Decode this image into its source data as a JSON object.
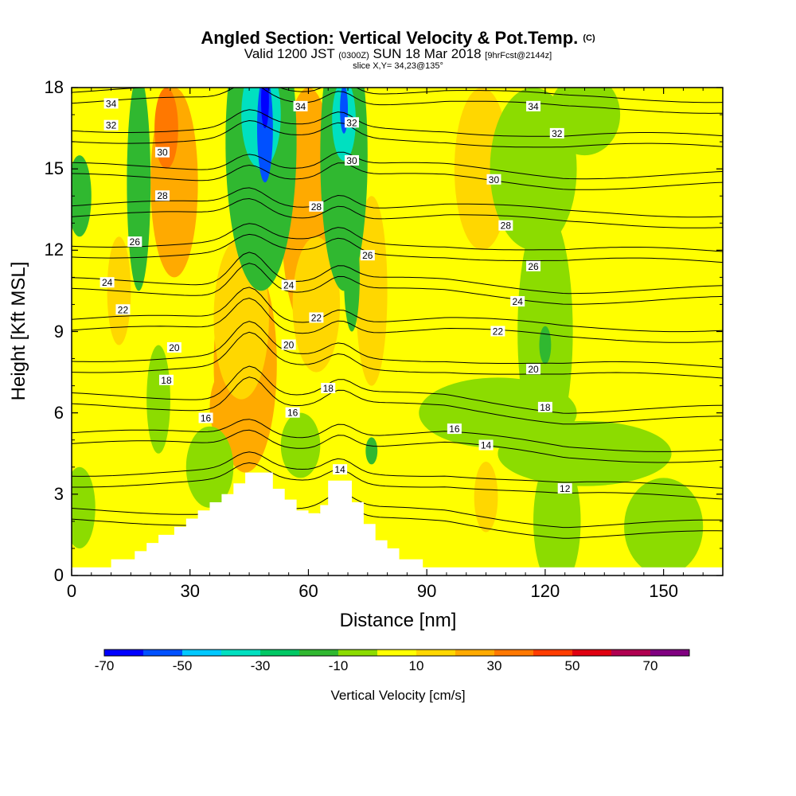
{
  "chart_data": {
    "type": "heatmap",
    "title": "Angled Section: Vertical Velocity & Pot.Temp.",
    "title_unit": "(C)",
    "subtitle": {
      "valid": "Valid 1200 JST",
      "utc": "(0300Z)",
      "date": "SUN 18 Mar 2018",
      "forecast": "[9hrFcst@2144z]"
    },
    "slice": "slice X,Y= 34,23@135°",
    "xlabel": "Distance [nm]",
    "ylabel": "Height [Kft MSL]",
    "xlim": [
      0,
      165
    ],
    "ylim": [
      0,
      18
    ],
    "x_ticks": [
      "0",
      "30",
      "60",
      "90",
      "120",
      "150"
    ],
    "y_ticks": [
      "0",
      "3",
      "6",
      "9",
      "12",
      "15",
      "18"
    ],
    "colorbar": {
      "title": "Vertical Velocity [cm/s]",
      "tick_labels": [
        "-70",
        "-50",
        "-30",
        "-10",
        "10",
        "30",
        "50",
        "70"
      ],
      "levels": [
        -70,
        -60,
        -50,
        -40,
        -30,
        -20,
        -10,
        0,
        10,
        20,
        30,
        40,
        50,
        60,
        70,
        80
      ],
      "colors": [
        "#0000ff",
        "#0050ff",
        "#00c8ff",
        "#00e0c0",
        "#00c864",
        "#30b830",
        "#8cdc00",
        "#ffff00",
        "#ffd700",
        "#ffaa00",
        "#ff7800",
        "#ff3c00",
        "#e00010",
        "#b00050",
        "#800080"
      ]
    },
    "terrain_profile": [
      [
        0,
        0.3
      ],
      [
        10,
        0.3
      ],
      [
        10,
        0.6
      ],
      [
        16,
        0.6
      ],
      [
        16,
        0.9
      ],
      [
        19,
        0.9
      ],
      [
        19,
        1.2
      ],
      [
        22,
        1.2
      ],
      [
        22,
        1.5
      ],
      [
        26,
        1.5
      ],
      [
        26,
        1.8
      ],
      [
        29,
        1.8
      ],
      [
        29,
        2.1
      ],
      [
        32,
        2.1
      ],
      [
        32,
        2.4
      ],
      [
        35,
        2.4
      ],
      [
        35,
        2.7
      ],
      [
        38,
        2.7
      ],
      [
        38,
        3.0
      ],
      [
        41,
        3.0
      ],
      [
        41,
        3.4
      ],
      [
        44,
        3.4
      ],
      [
        44,
        3.8
      ],
      [
        51,
        3.8
      ],
      [
        51,
        3.2
      ],
      [
        54,
        3.2
      ],
      [
        54,
        2.8
      ],
      [
        57,
        2.8
      ],
      [
        57,
        2.4
      ],
      [
        60,
        2.4
      ],
      [
        60,
        2.3
      ],
      [
        63,
        2.3
      ],
      [
        63,
        2.6
      ],
      [
        65,
        2.6
      ],
      [
        65,
        3.5
      ],
      [
        71,
        3.5
      ],
      [
        71,
        2.7
      ],
      [
        74,
        2.7
      ],
      [
        74,
        1.9
      ],
      [
        77,
        1.9
      ],
      [
        77,
        1.3
      ],
      [
        80,
        1.3
      ],
      [
        80,
        1.0
      ],
      [
        83,
        1.0
      ],
      [
        83,
        0.6
      ],
      [
        89,
        0.6
      ],
      [
        89,
        0.3
      ],
      [
        165,
        0.3
      ]
    ],
    "velocity_features": [
      {
        "x": 45,
        "y": 7.2,
        "rx": 3,
        "ry": 1.2,
        "value": 45
      },
      {
        "x": 45,
        "y": 7.5,
        "rx": 5,
        "ry": 2.4,
        "value": 35
      },
      {
        "x": 44,
        "y": 7.8,
        "rx": 8,
        "ry": 4.0,
        "value": 25
      },
      {
        "x": 40,
        "y": 6.2,
        "rx": 5,
        "ry": 1.5,
        "value": 25
      },
      {
        "x": 43,
        "y": 9.5,
        "rx": 7,
        "ry": 3.0,
        "value": 15
      },
      {
        "x": 26,
        "y": 14.5,
        "rx": 6,
        "ry": 3.5,
        "value": 25
      },
      {
        "x": 24,
        "y": 16.5,
        "rx": 3,
        "ry": 1.5,
        "value": 35
      },
      {
        "x": 60,
        "y": 13.5,
        "rx": 7,
        "ry": 4.5,
        "value": 25
      },
      {
        "x": 62,
        "y": 10.0,
        "rx": 6,
        "ry": 2.5,
        "value": 15
      },
      {
        "x": 104,
        "y": 15.0,
        "rx": 7,
        "ry": 3.0,
        "value": 15
      },
      {
        "x": 76,
        "y": 10.5,
        "rx": 4,
        "ry": 3.5,
        "value": 15
      },
      {
        "x": 105,
        "y": 2.9,
        "rx": 3,
        "ry": 1.3,
        "value": 15
      },
      {
        "x": 12,
        "y": 10.5,
        "rx": 3,
        "ry": 2.0,
        "value": 15
      },
      {
        "x": 48,
        "y": 16.0,
        "rx": 9,
        "ry": 5.5,
        "value": -15
      },
      {
        "x": 48,
        "y": 17.0,
        "rx": 5,
        "ry": 2.0,
        "value": -35
      },
      {
        "x": 49,
        "y": 16.5,
        "rx": 2,
        "ry": 2.0,
        "value": -55
      },
      {
        "x": 49,
        "y": 17.5,
        "rx": 1,
        "ry": 1.0,
        "value": -70
      },
      {
        "x": 69,
        "y": 15.5,
        "rx": 6,
        "ry": 5.0,
        "value": -15
      },
      {
        "x": 69,
        "y": 16.8,
        "rx": 3,
        "ry": 1.5,
        "value": -35
      },
      {
        "x": 69,
        "y": 17.2,
        "rx": 1,
        "ry": 0.9,
        "value": -55
      },
      {
        "x": 71,
        "y": 11.0,
        "rx": 2,
        "ry": 2.0,
        "value": -15
      },
      {
        "x": 17,
        "y": 14.5,
        "rx": 3,
        "ry": 4.0,
        "value": -15
      },
      {
        "x": 2,
        "y": 14.0,
        "rx": 3,
        "ry": 1.5,
        "value": -15
      },
      {
        "x": 117,
        "y": 15.0,
        "rx": 11,
        "ry": 3.0,
        "value": -5
      },
      {
        "x": 120,
        "y": 9.0,
        "rx": 7,
        "ry": 4.5,
        "value": -5
      },
      {
        "x": 130,
        "y": 17.0,
        "rx": 9,
        "ry": 1.5,
        "value": -5
      },
      {
        "x": 108,
        "y": 6.0,
        "rx": 20,
        "ry": 1.3,
        "value": -5
      },
      {
        "x": 130,
        "y": 4.5,
        "rx": 22,
        "ry": 1.2,
        "value": -5
      },
      {
        "x": 123,
        "y": 2.0,
        "rx": 6,
        "ry": 2.5,
        "value": -5
      },
      {
        "x": 150,
        "y": 1.8,
        "rx": 10,
        "ry": 1.8,
        "value": -5
      },
      {
        "x": 35,
        "y": 4.0,
        "rx": 6,
        "ry": 1.5,
        "value": -5
      },
      {
        "x": 22,
        "y": 6.5,
        "rx": 3,
        "ry": 2.0,
        "value": -5
      },
      {
        "x": 58,
        "y": 4.8,
        "rx": 5,
        "ry": 1.2,
        "value": -5
      },
      {
        "x": 2,
        "y": 2.5,
        "rx": 4,
        "ry": 1.5,
        "value": -5
      },
      {
        "x": 120,
        "y": 8.5,
        "rx": 1.5,
        "ry": 0.7,
        "value": -15
      },
      {
        "x": 76,
        "y": 4.6,
        "rx": 1.5,
        "ry": 0.5,
        "value": -15
      }
    ],
    "theta_levels": [
      12,
      14,
      16,
      18,
      20,
      22,
      24,
      26,
      28,
      30,
      32,
      34
    ],
    "theta_labels": [
      {
        "text": "34",
        "x": 10,
        "y": 17.4
      },
      {
        "text": "34",
        "x": 58,
        "y": 17.3
      },
      {
        "text": "34",
        "x": 117,
        "y": 17.3
      },
      {
        "text": "32",
        "x": 10,
        "y": 16.6
      },
      {
        "text": "32",
        "x": 71,
        "y": 16.7
      },
      {
        "text": "32",
        "x": 123,
        "y": 16.3
      },
      {
        "text": "30",
        "x": 23,
        "y": 15.6
      },
      {
        "text": "30",
        "x": 71,
        "y": 15.3
      },
      {
        "text": "30",
        "x": 107,
        "y": 14.6
      },
      {
        "text": "28",
        "x": 23,
        "y": 14.0
      },
      {
        "text": "28",
        "x": 62,
        "y": 13.6
      },
      {
        "text": "28",
        "x": 110,
        "y": 12.9
      },
      {
        "text": "26",
        "x": 16,
        "y": 12.3
      },
      {
        "text": "26",
        "x": 75,
        "y": 11.8
      },
      {
        "text": "26",
        "x": 117,
        "y": 11.4
      },
      {
        "text": "24",
        "x": 9,
        "y": 10.8
      },
      {
        "text": "24",
        "x": 55,
        "y": 10.7
      },
      {
        "text": "24",
        "x": 113,
        "y": 10.1
      },
      {
        "text": "22",
        "x": 13,
        "y": 9.8
      },
      {
        "text": "22",
        "x": 62,
        "y": 9.5
      },
      {
        "text": "22",
        "x": 108,
        "y": 9.0
      },
      {
        "text": "20",
        "x": 26,
        "y": 8.4
      },
      {
        "text": "20",
        "x": 55,
        "y": 8.5
      },
      {
        "text": "20",
        "x": 117,
        "y": 7.6
      },
      {
        "text": "18",
        "x": 24,
        "y": 7.2
      },
      {
        "text": "18",
        "x": 65,
        "y": 6.9
      },
      {
        "text": "18",
        "x": 120,
        "y": 6.2
      },
      {
        "text": "16",
        "x": 34,
        "y": 5.8
      },
      {
        "text": "16",
        "x": 56,
        "y": 6.0
      },
      {
        "text": "16",
        "x": 97,
        "y": 5.4
      },
      {
        "text": "14",
        "x": 68,
        "y": 3.9
      },
      {
        "text": "14",
        "x": 105,
        "y": 4.8
      },
      {
        "text": "12",
        "x": 125,
        "y": 3.2
      }
    ]
  }
}
